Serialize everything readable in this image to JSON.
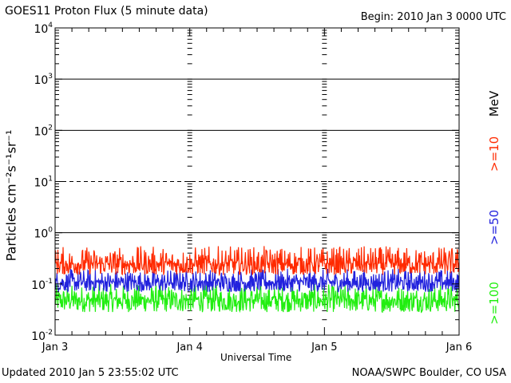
{
  "header": {
    "title": "GOES11 Proton Flux (5 minute data)",
    "begin": "Begin: 2010 Jan 3 0000 UTC"
  },
  "footer": {
    "updated": "Updated 2010 Jan  5 23:55:02 UTC",
    "credit": "NOAA/SWPC Boulder, CO USA"
  },
  "chart_data": {
    "type": "line",
    "title": "GOES11 Proton Flux (5 minute data)",
    "xlabel": "Universal Time",
    "ylabel": "Particles cm⁻²s⁻¹sr⁻¹",
    "y_scale": "log",
    "ylim": [
      0.01,
      10000
    ],
    "y_ticks": [
      {
        "value": 0.01,
        "base": "10",
        "exp": "-2"
      },
      {
        "value": 0.1,
        "base": "10",
        "exp": "-1"
      },
      {
        "value": 1,
        "base": "10",
        "exp": "0"
      },
      {
        "value": 10,
        "base": "10",
        "exp": "1"
      },
      {
        "value": 100,
        "base": "10",
        "exp": "2"
      },
      {
        "value": 1000,
        "base": "10",
        "exp": "3"
      },
      {
        "value": 10000,
        "base": "10",
        "exp": "4"
      }
    ],
    "x_ticks": [
      "Jan 3",
      "Jan 4",
      "Jan 5",
      "Jan 6"
    ],
    "xlim": [
      "2010-01-03T00:00",
      "2010-01-06T00:00"
    ],
    "thresholds": [
      {
        "value": 1,
        "style": "solid"
      },
      {
        "value": 10,
        "style": "dashed"
      },
      {
        "value": 100,
        "style": "solid"
      },
      {
        "value": 1000,
        "style": "solid"
      }
    ],
    "grid": "dotted vertical at day boundaries",
    "unit_label": "MeV",
    "series": [
      {
        "name": ">=10",
        "color": "#ff2a00",
        "typical": 0.25,
        "range": [
          0.15,
          0.55
        ]
      },
      {
        "name": ">=50",
        "color": "#2222dd",
        "typical": 0.11,
        "range": [
          0.07,
          0.2
        ]
      },
      {
        "name": ">=100",
        "color": "#22ee11",
        "typical": 0.05,
        "range": [
          0.028,
          0.1
        ]
      }
    ]
  }
}
